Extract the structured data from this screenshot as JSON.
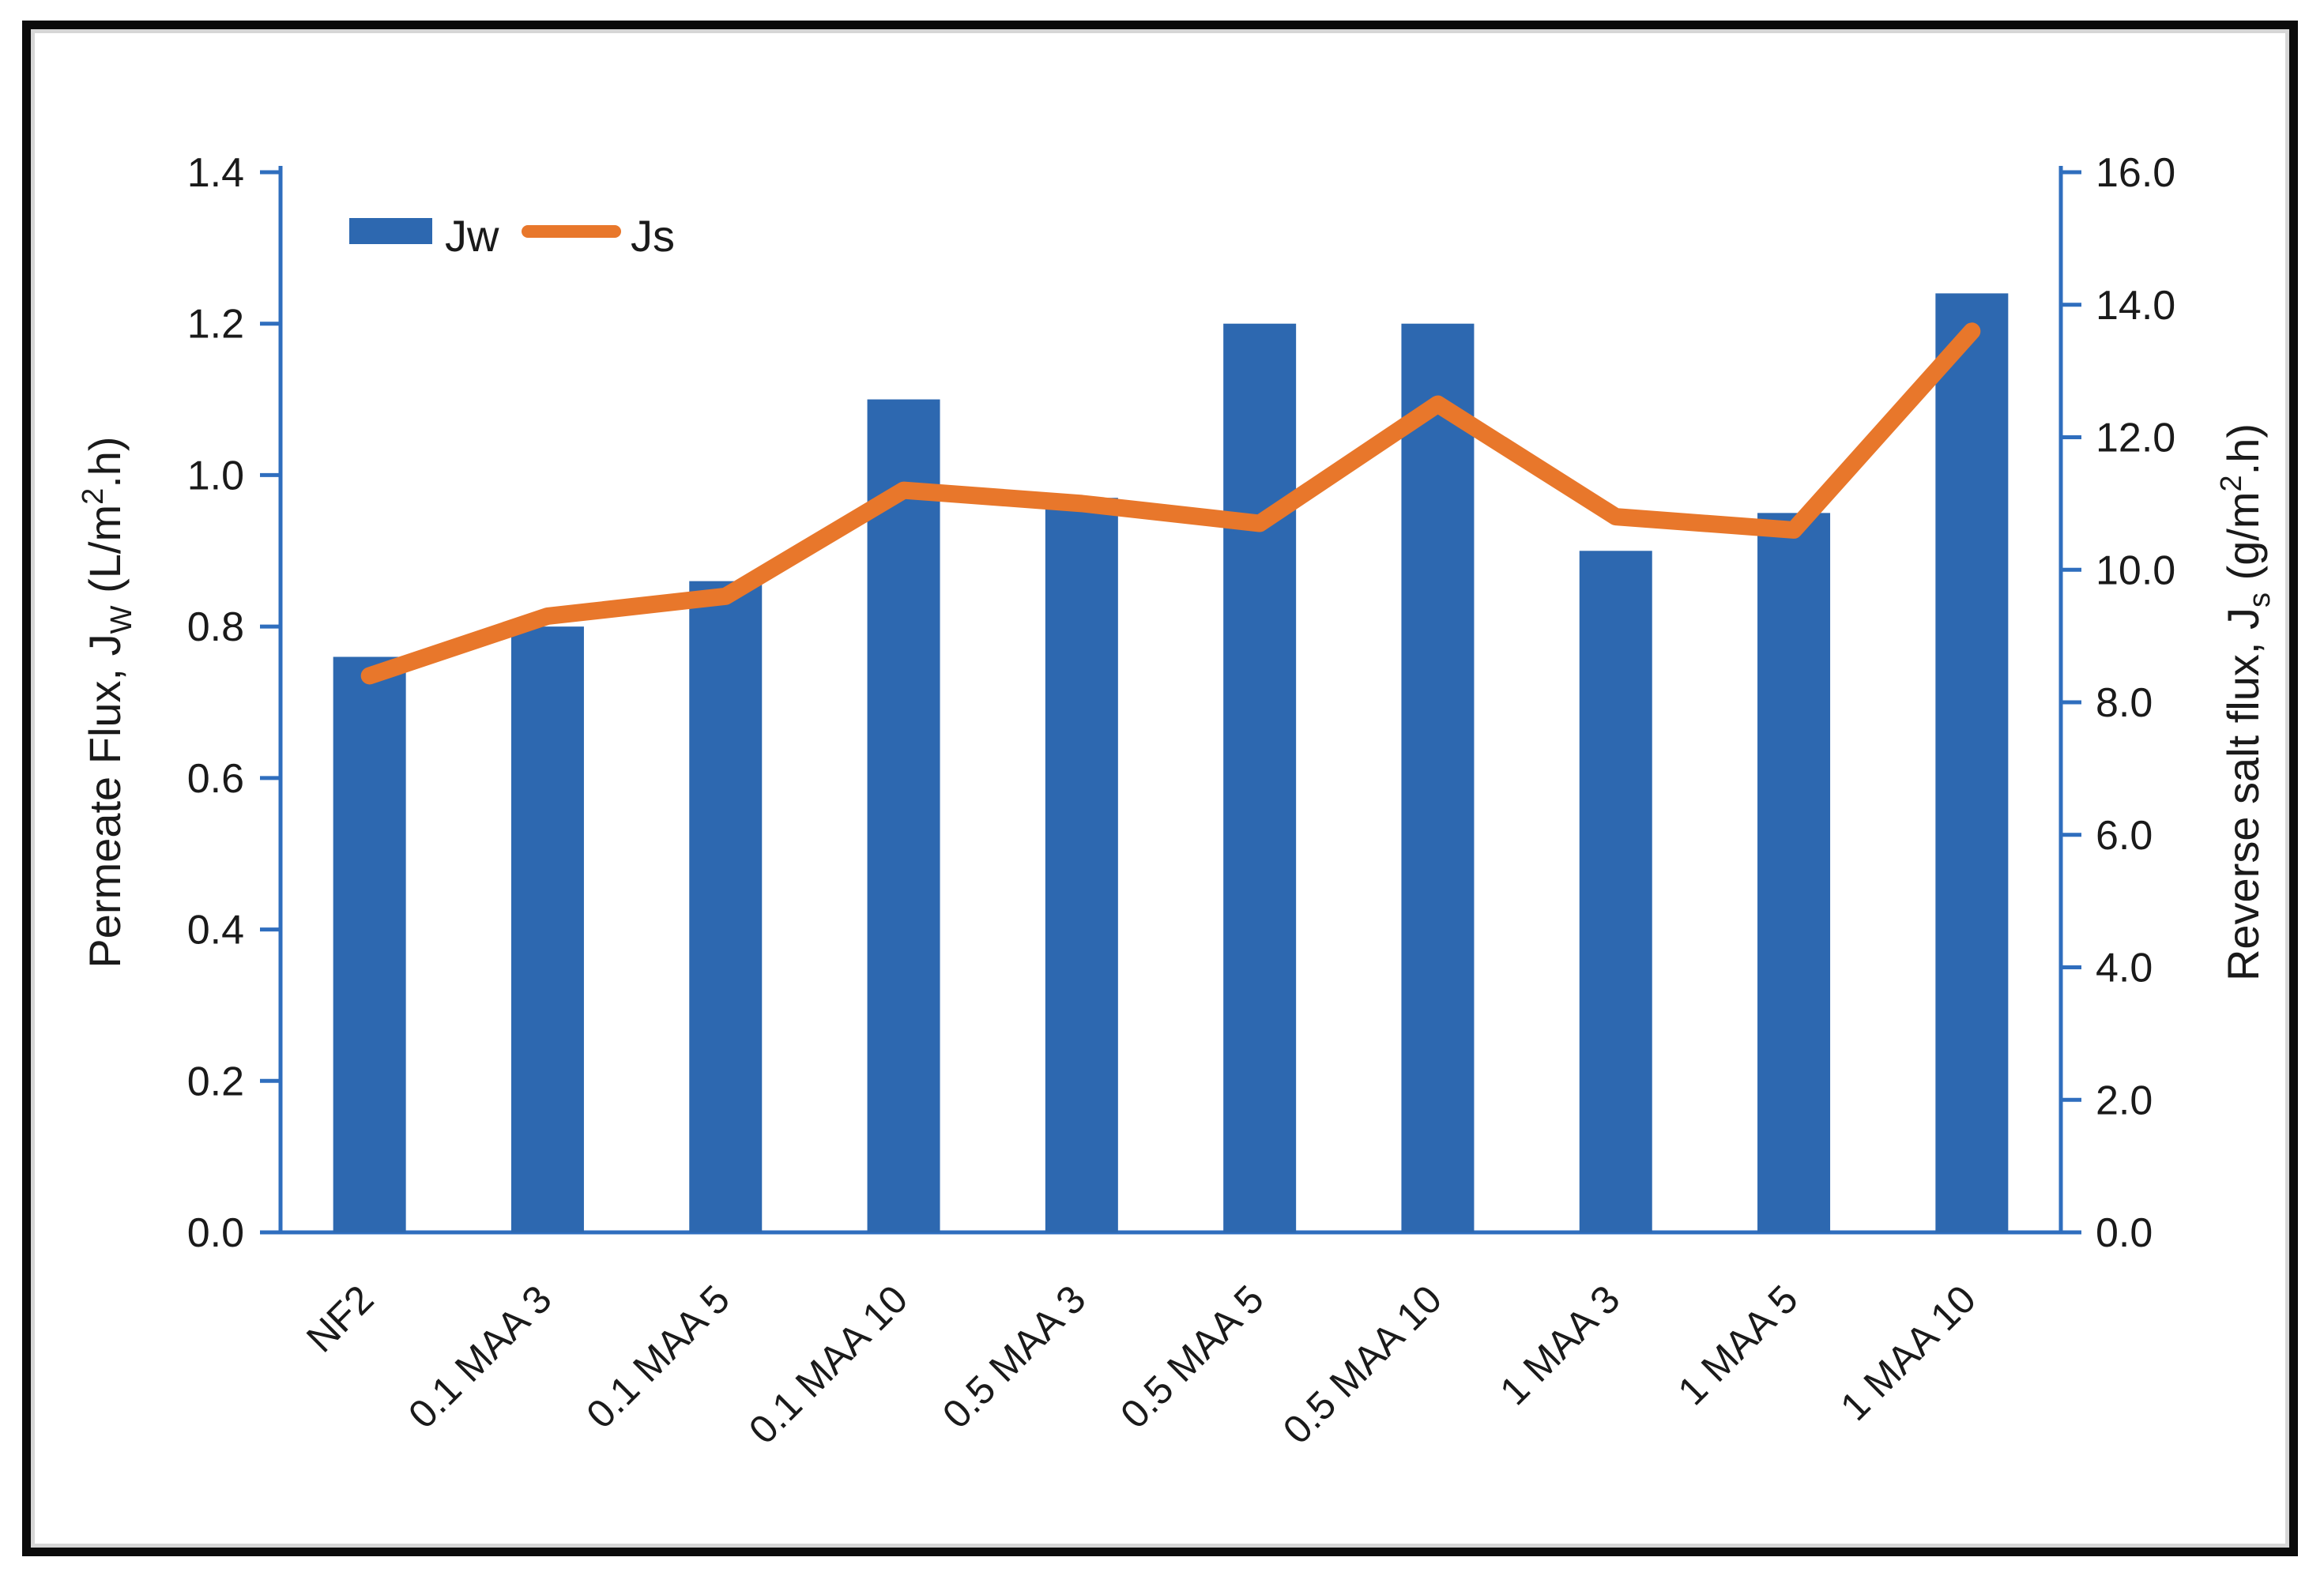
{
  "figure": {
    "frame_border_color": "#0b0b0b",
    "background_color": "#ffffff"
  },
  "chart_data": {
    "type": "bar",
    "subtype": "combo-bar-line-dual-axis",
    "categories": [
      "NF2",
      "0.1 MAA 3",
      "0.1 MAA 5",
      "0.1 MAA 10",
      "0.5 MAA 3",
      "0.5 MAA 5",
      "0.5 MAA 10",
      "1 MAA 3",
      "1 MAA 5",
      "1 MAA 10"
    ],
    "series": [
      {
        "name": "Jw",
        "type": "bar",
        "axis": "left",
        "color": "#2d68b0",
        "values": [
          0.76,
          0.8,
          0.86,
          1.1,
          0.97,
          1.2,
          1.2,
          0.9,
          0.95,
          1.24
        ]
      },
      {
        "name": "Js",
        "type": "line",
        "axis": "right",
        "color": "#e8772b",
        "values": [
          8.4,
          9.3,
          9.6,
          11.2,
          11.0,
          10.7,
          12.5,
          10.8,
          10.6,
          13.6
        ]
      }
    ],
    "left_axis": {
      "title": "Permeate Flux, JW (L/m2.h)",
      "title_parts": [
        {
          "t": "Permeate Flux,  J"
        },
        {
          "t": "W",
          "sub": true
        },
        {
          "t": " (L/m"
        },
        {
          "t": "2",
          "sup": true
        },
        {
          "t": ".h)"
        }
      ],
      "min": 0.0,
      "max": 1.4,
      "ticks": [
        "0.0",
        "0.2",
        "0.4",
        "0.6",
        "0.8",
        "1.0",
        "1.2",
        "1.4"
      ]
    },
    "right_axis": {
      "title": "Reverse salt flux, Js (g/m2.h)",
      "title_parts": [
        {
          "t": "Reverse salt flux,  J"
        },
        {
          "t": "s",
          "sub": true
        },
        {
          "t": " (g/m"
        },
        {
          "t": "2",
          "sup": true
        },
        {
          "t": ".h)"
        }
      ],
      "min": 0.0,
      "max": 16.0,
      "ticks": [
        "0.0",
        "2.0",
        "4.0",
        "6.0",
        "8.0",
        "10.0",
        "12.0",
        "14.0",
        "16.0"
      ]
    },
    "legend": {
      "position": "top-left-inside",
      "items": [
        {
          "label": "Jw",
          "swatch": "bar",
          "color": "#2d68b0"
        },
        {
          "label": "Js",
          "swatch": "line",
          "color": "#e8772b"
        }
      ]
    },
    "axis_color": "#2f6ebe",
    "grid": false
  }
}
